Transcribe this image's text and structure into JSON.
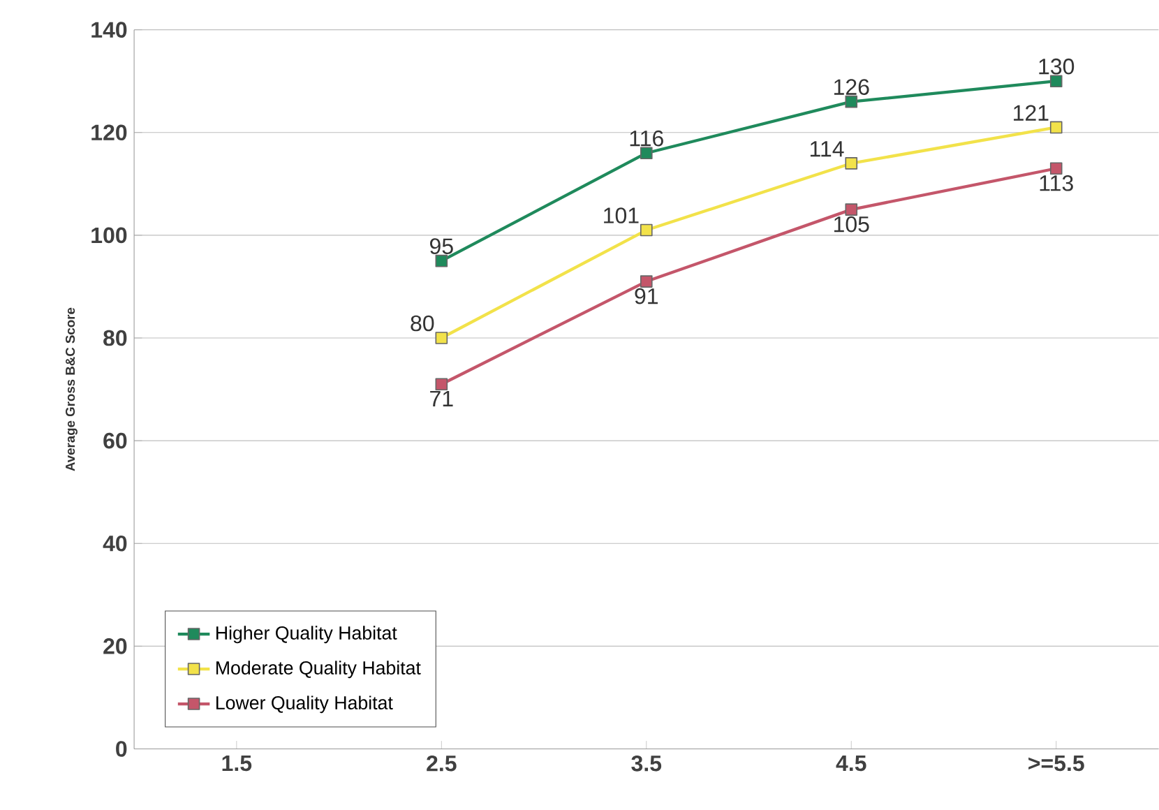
{
  "chart_data": {
    "type": "line",
    "ylabel": "Average Gross B&C Score",
    "categories": [
      "1.5",
      "2.5",
      "3.5",
      "4.5",
      ">=5.5"
    ],
    "series": [
      {
        "name": "Higher Quality Habitat",
        "color": "#1f8a5c",
        "values": [
          null,
          95,
          116,
          126,
          130
        ]
      },
      {
        "name": "Moderate Quality Habitat",
        "color": "#f2e24a",
        "values": [
          null,
          80,
          101,
          114,
          121
        ]
      },
      {
        "name": "Lower Quality Habitat",
        "color": "#c4566a",
        "values": [
          null,
          71,
          91,
          105,
          113
        ]
      }
    ],
    "ylim": [
      0,
      140
    ],
    "yticks": [
      0,
      20,
      40,
      60,
      80,
      100,
      120,
      140
    ],
    "grid": "y",
    "legend": "bottom left",
    "marker": "square",
    "line_style": "solid",
    "data_labels": true
  }
}
